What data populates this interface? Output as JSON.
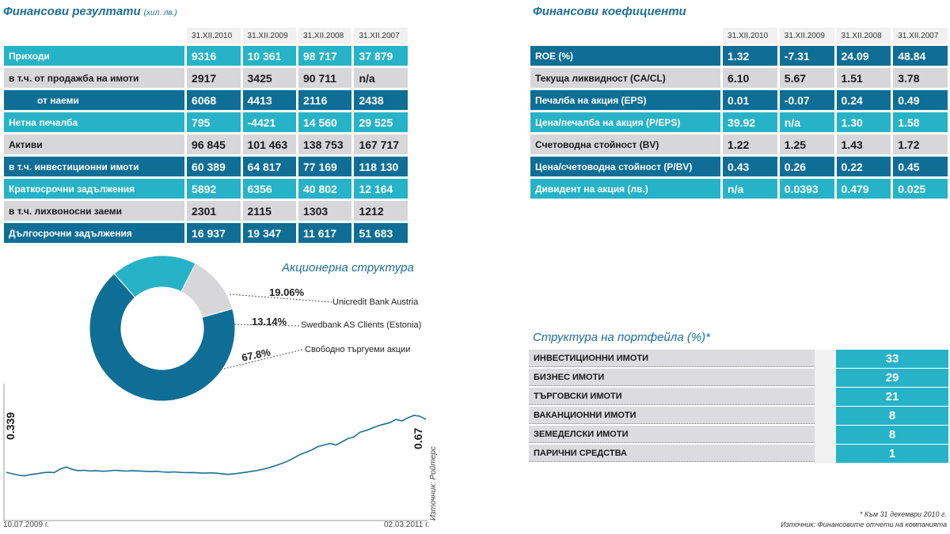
{
  "results": {
    "title": "Финансови резултати",
    "unit": "(хил. лв.)",
    "headers": [
      "31.XII.2010",
      "31.XII.2009",
      "31.XII.2008",
      "31.XII.2007"
    ],
    "rows": [
      {
        "label": "Приходи",
        "values": [
          "9316",
          "10 361",
          "98 717",
          "37 879"
        ]
      },
      {
        "label": "в т.ч. от продажба на имоти",
        "values": [
          "2917",
          "3425",
          "90 711",
          "n/a"
        ]
      },
      {
        "label": "от наеми",
        "values": [
          "6068",
          "4413",
          "2116",
          "2438"
        ]
      },
      {
        "label": "Нетна печалба",
        "values": [
          "795",
          "-4421",
          "14 560",
          "29 525"
        ]
      },
      {
        "label": "Активи",
        "values": [
          "96 845",
          "101 463",
          "138 753",
          "167 717"
        ]
      },
      {
        "label": "в т.ч. инвестиционни имоти",
        "values": [
          "60 389",
          "64 817",
          "77 169",
          "118 130"
        ]
      },
      {
        "label": "Краткосрочни задължения",
        "values": [
          "5892",
          "6356",
          "40 802",
          "12 164"
        ]
      },
      {
        "label": "в т.ч. лихвоносни заеми",
        "values": [
          "2301",
          "2115",
          "1303",
          "1212"
        ]
      },
      {
        "label": "Дългосрочни задължения",
        "values": [
          "16 937",
          "19 347",
          "11 617",
          "51 683"
        ]
      }
    ]
  },
  "ratios": {
    "title": "Финансови коефициенти",
    "headers": [
      "31.XII.2010",
      "31.XII.2009",
      "31.XII.2008",
      "31.XII.2007"
    ],
    "rows": [
      {
        "label": "ROE (%)",
        "values": [
          "1.32",
          "-7.31",
          "24.09",
          "48.84"
        ]
      },
      {
        "label": "Текуща ликвидност (CA/CL)",
        "values": [
          "6.10",
          "5.67",
          "1.51",
          "3.78"
        ]
      },
      {
        "label": "Печалба на акция (EPS)",
        "values": [
          "0.01",
          "-0.07",
          "0.24",
          "0.49"
        ]
      },
      {
        "label": "Цена/печалба на акция (P/EPS)",
        "values": [
          "39.92",
          "n/a",
          "1.30",
          "1.58"
        ]
      },
      {
        "label": "Счетоводна стойност (BV)",
        "values": [
          "1.22",
          "1.25",
          "1.43",
          "1.72"
        ]
      },
      {
        "label": "Цена/счетоводна стойност (P/BV)",
        "values": [
          "0.43",
          "0.26",
          "0.22",
          "0.45"
        ]
      },
      {
        "label": "Дивидент на акция (лв.)",
        "values": [
          "n/a",
          "0.0393",
          "0.479",
          "0.025"
        ]
      }
    ]
  },
  "shareholders": {
    "title": "Акционерна структура",
    "slices": [
      {
        "name": "Unicredit Bank Austria",
        "pct_label": "19.06%",
        "value": 19.06,
        "color": "#26b3c7"
      },
      {
        "name": "Swedbank AS Clients (Estonia)",
        "pct_label": "13.14%",
        "value": 13.14,
        "color": "#d7d7d9"
      },
      {
        "name": "Свободно търгуеми акции",
        "pct_label": "67.8%",
        "value": 67.8,
        "color": "#0f6e96"
      }
    ]
  },
  "price": {
    "start_value": "0.339",
    "end_value": "0.67",
    "start_date": "10.07.2009 г.",
    "end_date": "02.03.2011 г.",
    "source": "Източник: Ройтерс",
    "line_color": "#1d6f93",
    "series": [
      0.339,
      0.33,
      0.322,
      0.318,
      0.325,
      0.33,
      0.336,
      0.34,
      0.338,
      0.36,
      0.372,
      0.358,
      0.35,
      0.352,
      0.348,
      0.35,
      0.346,
      0.348,
      0.352,
      0.35,
      0.347,
      0.35,
      0.348,
      0.346,
      0.344,
      0.346,
      0.342,
      0.34,
      0.342,
      0.339,
      0.337,
      0.338,
      0.336,
      0.334,
      0.336,
      0.334,
      0.33,
      0.326,
      0.33,
      0.335,
      0.34,
      0.346,
      0.352,
      0.36,
      0.37,
      0.382,
      0.395,
      0.41,
      0.43,
      0.45,
      0.465,
      0.48,
      0.5,
      0.51,
      0.52,
      0.51,
      0.53,
      0.55,
      0.56,
      0.59,
      0.6,
      0.615,
      0.63,
      0.64,
      0.65,
      0.67,
      0.66,
      0.68,
      0.695,
      0.69,
      0.67
    ]
  },
  "portfolio": {
    "title": "Структура на портфейла (%)*",
    "rows": [
      {
        "label": "ИНВЕСТИЦИОННИ ИМОТИ",
        "value": "33"
      },
      {
        "label": "БИЗНЕС ИМОТИ",
        "value": "29"
      },
      {
        "label": "ТЪРГОВСКИ ИМОТИ",
        "value": "21"
      },
      {
        "label": "ВАКАНЦИОННИ ИМОТИ",
        "value": "8"
      },
      {
        "label": "ЗЕМЕДЕЛСКИ ИМОТИ",
        "value": "8"
      },
      {
        "label": "ПАРИЧНИ СРЕДСТВА",
        "value": "1"
      }
    ]
  },
  "notes": {
    "footnote": "* Към 31 декември 2010 г.",
    "source": "Източник: Финансовите отчети на компанията"
  }
}
